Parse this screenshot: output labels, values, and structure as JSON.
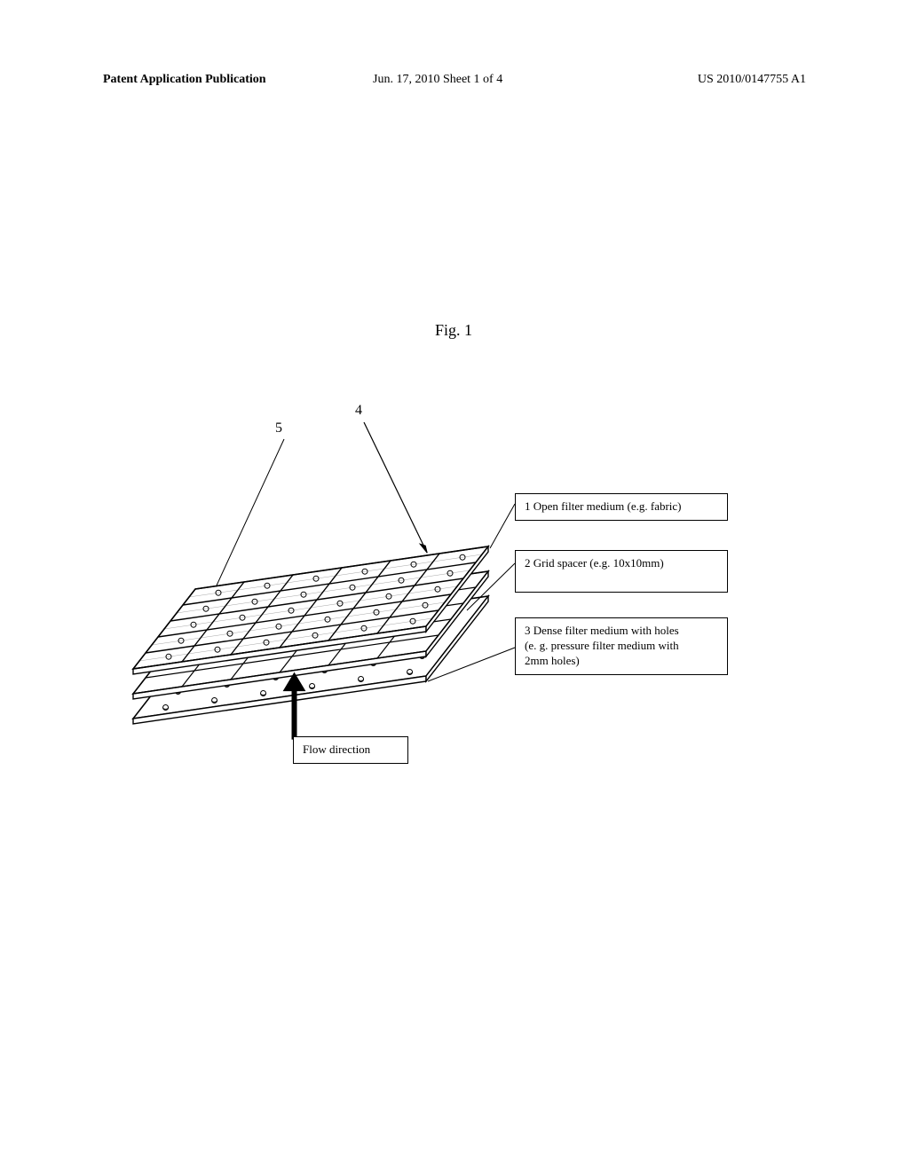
{
  "header": {
    "left": "Patent Application Publication",
    "center": "Jun. 17, 2010  Sheet 1 of 4",
    "right": "US 2010/0147755 A1"
  },
  "figure": {
    "label": "Fig. 1",
    "callout_4": "4",
    "callout_5": "5",
    "flow_direction": "Flow direction",
    "legend_1": "1 Open filter medium (e.g. fabric)",
    "legend_2": "2 Grid spacer (e.g. 10x10mm)",
    "legend_3_a": "3 Dense filter medium with holes",
    "legend_3_b": "(e. g. pressure filter medium with",
    "legend_3_c": "2mm holes)"
  },
  "style": {
    "page_bg": "#ffffff",
    "ink": "#000000",
    "label_fontsize": 13,
    "header_fontsize": 14,
    "fig_label_fontsize": 18,
    "diagram": {
      "type": "exploded-isometric",
      "layers": 3,
      "grid_cols": 6,
      "grid_rows": 5,
      "tilt_deg": -8,
      "skew_deg": 12,
      "hole_radius": 3
    }
  }
}
